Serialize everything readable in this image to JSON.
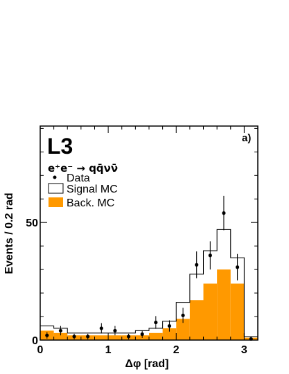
{
  "chart_data": {
    "type": "histogram",
    "experiment_label": "L3",
    "panel_label": "a)",
    "process_label": "e⁺e⁻ → qq̄νν̄",
    "xlabel": "Δφ [rad]",
    "ylabel": "Events / 0.2 rad",
    "xlim": [
      0,
      3.2
    ],
    "ylim": [
      0,
      91
    ],
    "x_ticks": [
      0,
      1,
      2,
      3
    ],
    "y_ticks": [
      0,
      50
    ],
    "bin_edges": [
      0,
      0.2,
      0.4,
      0.6,
      0.8,
      1.0,
      1.2,
      1.4,
      1.6,
      1.8,
      2.0,
      2.2,
      2.4,
      2.6,
      2.8,
      3.0,
      3.2
    ],
    "legend": {
      "data": "Data",
      "signal": "Signal MC",
      "background": "Back. MC"
    },
    "background_mc": [
      4,
      3,
      2,
      2,
      2,
      2,
      2,
      2,
      3,
      5,
      9,
      17,
      24,
      30,
      24,
      1
    ],
    "signal_plus_background_mc": [
      6,
      5,
      3,
      3,
      3,
      3,
      3,
      4,
      5,
      8,
      16,
      28,
      38,
      47,
      35,
      1.5
    ],
    "data": {
      "x": [
        0.1,
        0.3,
        0.5,
        0.7,
        0.9,
        1.1,
        1.3,
        1.5,
        1.7,
        1.9,
        2.1,
        2.3,
        2.5,
        2.7,
        2.9,
        3.1
      ],
      "y": [
        2,
        4,
        1.5,
        1.5,
        5,
        4,
        1.5,
        2.5,
        7.5,
        6,
        10.5,
        32,
        36,
        54,
        31,
        0.5
      ],
      "err": [
        1.4,
        2,
        1.2,
        1.2,
        2.2,
        2,
        1.2,
        1.6,
        2.7,
        2.4,
        3.2,
        5.7,
        6,
        7.3,
        5.6,
        0.7
      ]
    }
  }
}
